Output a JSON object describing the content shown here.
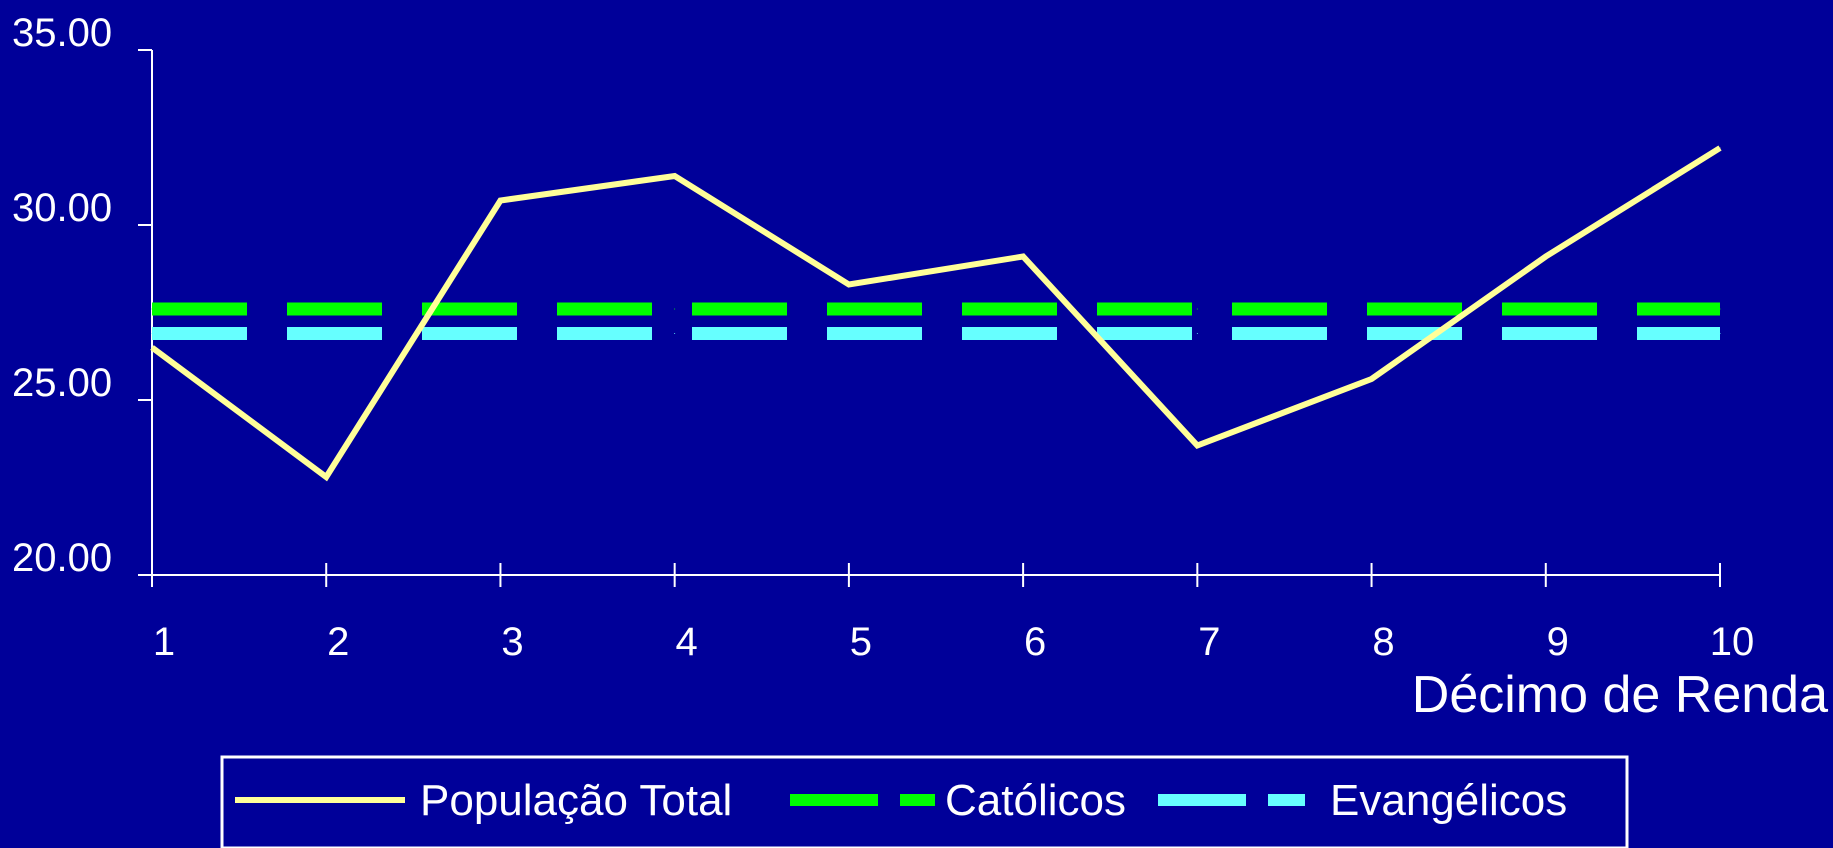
{
  "chart_data": {
    "type": "line",
    "x": [
      "1",
      "2",
      "3",
      "4",
      "5",
      "6",
      "7",
      "8",
      "9",
      "10"
    ],
    "xlabel": "Décimo de Renda",
    "ylabel": "",
    "ylim": [
      20,
      35
    ],
    "yticks": [
      "20.00",
      "25.00",
      "30.00",
      "35.00"
    ],
    "grid": false,
    "legend_position": "bottom",
    "series": [
      {
        "name": "População Total",
        "values": [
          26.5,
          22.8,
          30.7,
          31.4,
          28.3,
          29.1,
          23.7,
          25.6,
          29.1,
          32.2
        ],
        "color": "#ffff99",
        "style": "solid"
      },
      {
        "name": "Católicos",
        "values": [
          27.6,
          27.6,
          27.6,
          27.6,
          27.6,
          27.6,
          27.6,
          27.6,
          27.6,
          27.6
        ],
        "color": "#00ff00",
        "style": "dashed"
      },
      {
        "name": "Evangélicos",
        "values": [
          26.9,
          26.9,
          26.9,
          26.9,
          26.9,
          26.9,
          26.9,
          26.9,
          26.9,
          26.9
        ],
        "color": "#66ffff",
        "style": "dashed"
      }
    ]
  },
  "colors": {
    "background": "#000099",
    "axis": "#ffffff"
  }
}
